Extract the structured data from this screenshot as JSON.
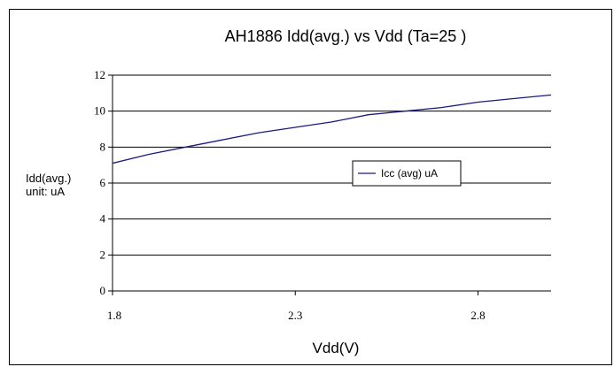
{
  "chart_data": {
    "type": "line",
    "title": "AH1886 Idd(avg.) vs Vdd   (Ta=25   )",
    "xlabel": "Vdd(V)",
    "ylabel_lines": [
      "Idd(avg.)",
      "unit: uA"
    ],
    "xlim": [
      1.8,
      3.0
    ],
    "ylim": [
      0,
      12
    ],
    "x_ticks": [
      1.8,
      2.3,
      2.8
    ],
    "x_tick_labels": [
      "1.8",
      "2.3",
      "2.8"
    ],
    "y_ticks": [
      0,
      2,
      4,
      6,
      8,
      10,
      12
    ],
    "y_tick_labels": [
      "0",
      "2",
      "4",
      "6",
      "8",
      "10",
      "12"
    ],
    "grid": "horizontal",
    "legend_position": "center-right",
    "series": [
      {
        "name": "Icc (avg) uA",
        "color": "#1a1a80",
        "x": [
          1.8,
          1.9,
          2.0,
          2.1,
          2.2,
          2.3,
          2.4,
          2.5,
          2.6,
          2.7,
          2.8,
          2.9,
          3.0
        ],
        "values": [
          7.1,
          7.6,
          8.0,
          8.4,
          8.8,
          9.1,
          9.4,
          9.8,
          10.0,
          10.2,
          10.5,
          10.7,
          10.9
        ]
      }
    ]
  }
}
